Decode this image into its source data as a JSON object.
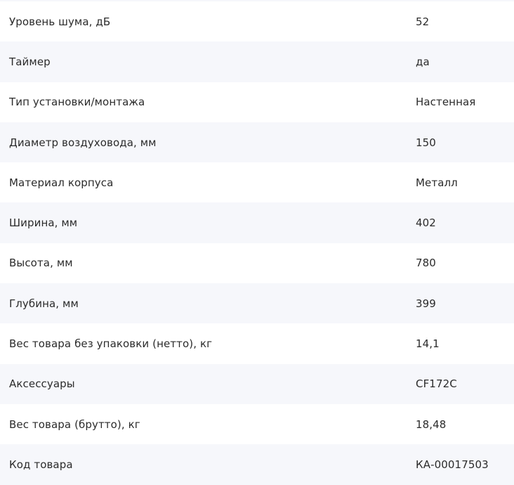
{
  "specs": [
    {
      "label": "Уровень шума, дБ",
      "value": "52"
    },
    {
      "label": "Таймер",
      "value": "да"
    },
    {
      "label": "Тип установки/монтажа",
      "value": "Настенная"
    },
    {
      "label": "Диаметр воздуховода, мм",
      "value": "150"
    },
    {
      "label": "Материал корпуса",
      "value": "Металл"
    },
    {
      "label": "Ширина, мм",
      "value": "402"
    },
    {
      "label": "Высота, мм",
      "value": "780"
    },
    {
      "label": "Глубина, мм",
      "value": "399"
    },
    {
      "label": "Вес товара без упаковки (нетто), кг",
      "value": "14,1"
    },
    {
      "label": "Аксессуары",
      "value": "CF172C"
    },
    {
      "label": "Вес товара (брутто), кг",
      "value": "18,48"
    },
    {
      "label": "Код товара",
      "value": "КА-00017503"
    }
  ]
}
